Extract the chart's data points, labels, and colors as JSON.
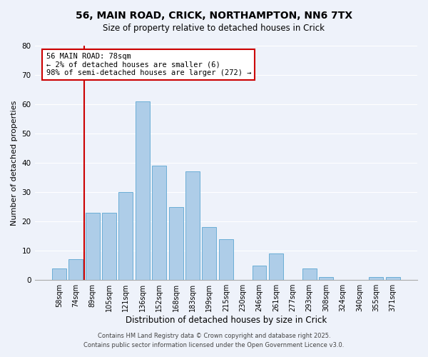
{
  "title1": "56, MAIN ROAD, CRICK, NORTHAMPTON, NN6 7TX",
  "title2": "Size of property relative to detached houses in Crick",
  "xlabel": "Distribution of detached houses by size in Crick",
  "ylabel": "Number of detached properties",
  "bar_labels": [
    "58sqm",
    "74sqm",
    "89sqm",
    "105sqm",
    "121sqm",
    "136sqm",
    "152sqm",
    "168sqm",
    "183sqm",
    "199sqm",
    "215sqm",
    "230sqm",
    "246sqm",
    "261sqm",
    "277sqm",
    "293sqm",
    "308sqm",
    "324sqm",
    "340sqm",
    "355sqm",
    "371sqm"
  ],
  "bar_values": [
    4,
    7,
    23,
    23,
    30,
    61,
    39,
    25,
    37,
    18,
    14,
    0,
    5,
    9,
    0,
    4,
    1,
    0,
    0,
    1,
    1
  ],
  "bar_color": "#aecde8",
  "bar_edge_color": "#6baed6",
  "ylim": [
    0,
    80
  ],
  "yticks": [
    0,
    10,
    20,
    30,
    40,
    50,
    60,
    70,
    80
  ],
  "vline_color": "#cc0000",
  "annotation_title": "56 MAIN ROAD: 78sqm",
  "annotation_line1": "← 2% of detached houses are smaller (6)",
  "annotation_line2": "98% of semi-detached houses are larger (272) →",
  "annotation_box_color": "#ffffff",
  "annotation_box_edge": "#cc0000",
  "bg_color": "#eef2fa",
  "grid_color": "#ffffff",
  "footer1": "Contains HM Land Registry data © Crown copyright and database right 2025.",
  "footer2": "Contains public sector information licensed under the Open Government Licence v3.0.",
  "title_fontsize": 10,
  "subtitle_fontsize": 8.5,
  "xlabel_fontsize": 8.5,
  "ylabel_fontsize": 8,
  "tick_fontsize": 7,
  "annotation_fontsize": 7.5,
  "footer_fontsize": 6
}
